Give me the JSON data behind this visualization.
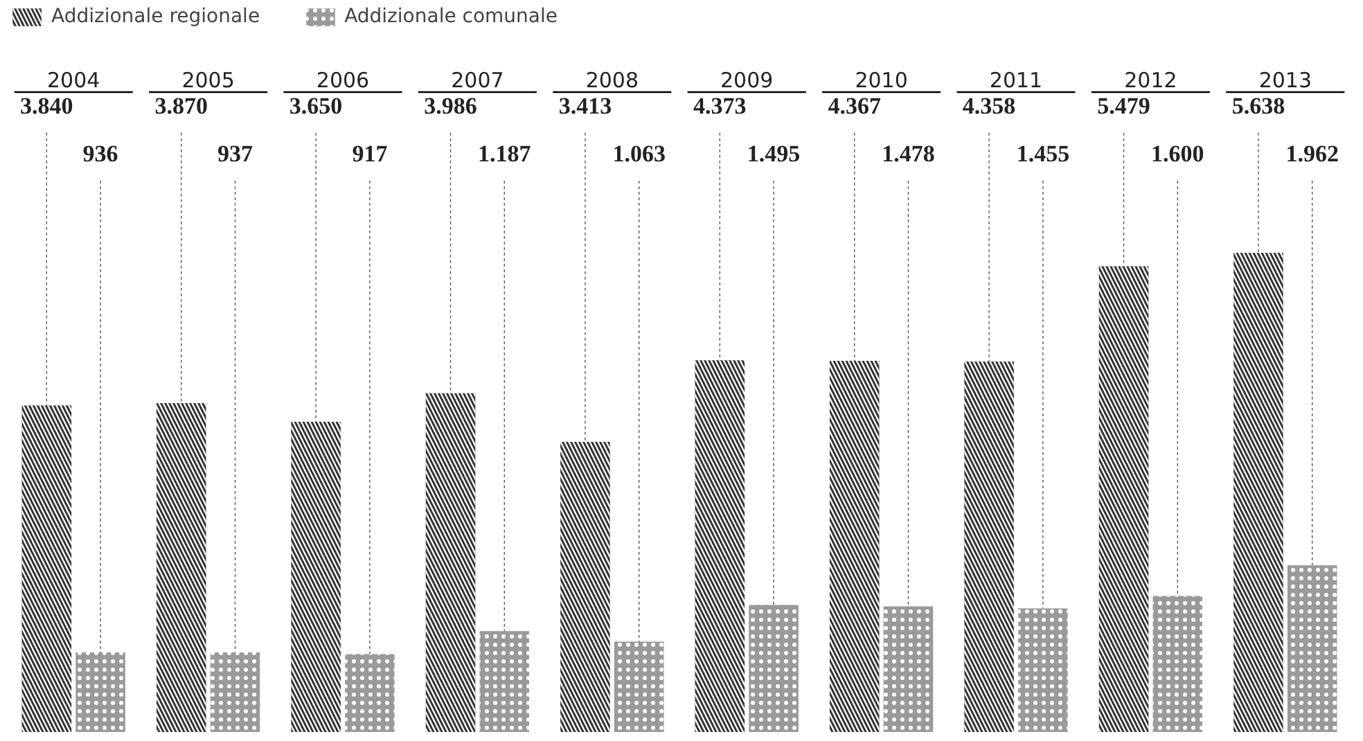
{
  "chart_data": {
    "type": "bar",
    "categories": [
      "2004",
      "2005",
      "2006",
      "2007",
      "2008",
      "2009",
      "2010",
      "2011",
      "2012",
      "2013"
    ],
    "series": [
      {
        "name": "Addizionale regionale",
        "color": "#333333",
        "values": [
          3840,
          3870,
          3650,
          3986,
          3413,
          4373,
          4367,
          4358,
          5479,
          5638
        ],
        "value_labels": [
          "3.840",
          "3.870",
          "3.650",
          "3.986",
          "3.413",
          "4.373",
          "4.367",
          "4.358",
          "5.479",
          "5.638"
        ]
      },
      {
        "name": "Addizionale comunale",
        "color": "#9a9a9a",
        "values": [
          936,
          937,
          917,
          1187,
          1063,
          1495,
          1478,
          1455,
          1600,
          1962
        ],
        "value_labels": [
          "936",
          "937",
          "917",
          "1.187",
          "1.063",
          "1.495",
          "1.478",
          "1.455",
          "1.600",
          "1.962"
        ]
      }
    ],
    "legend": "top left",
    "grid": false
  }
}
